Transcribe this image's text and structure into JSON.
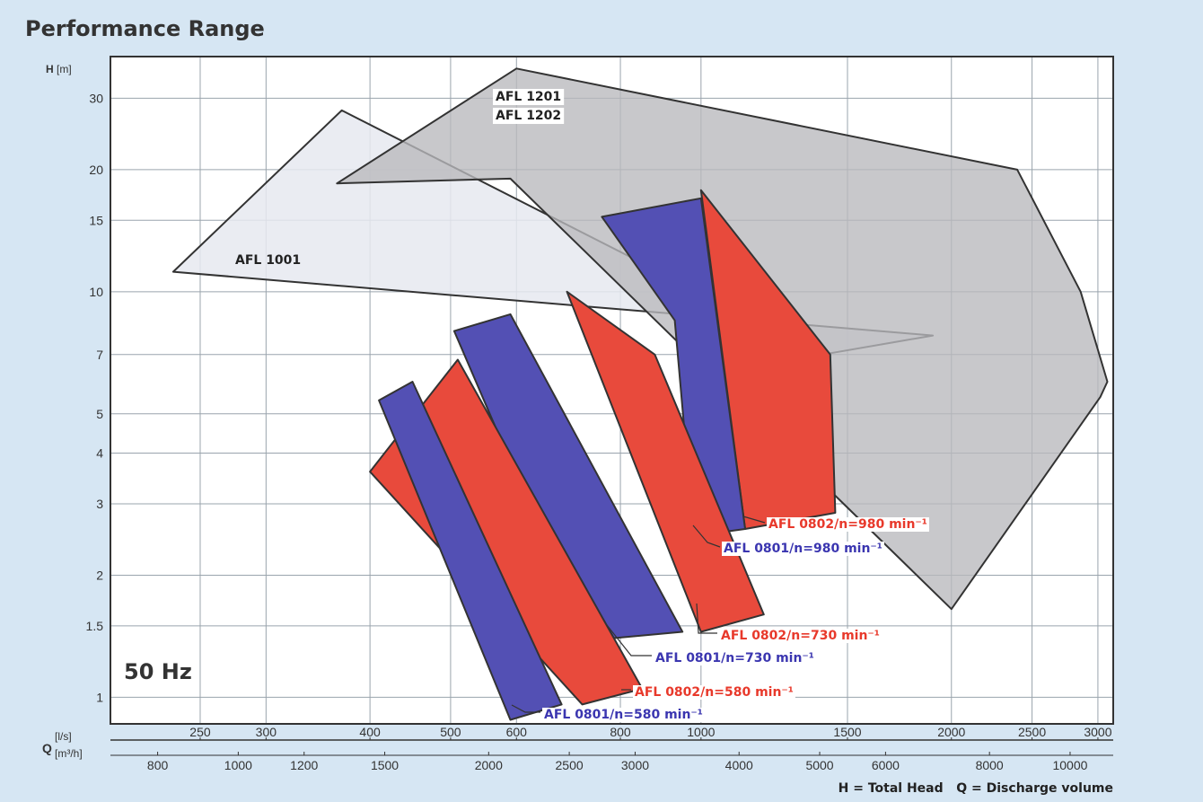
{
  "title": "Performance Range",
  "frequency_label": "50 Hz",
  "footer": "H = Total Head   Q = Discharge volume",
  "colors": {
    "background": "#d6e6f3",
    "plot": "#ffffff",
    "grid": "#9aa4ad",
    "red": "#e84a3c",
    "blue": "#5350b4",
    "grey": "#b9b9bd",
    "light": "#e6e9f0",
    "red_text": "#e8392b",
    "blue_text": "#3b36b0"
  },
  "chart_data": {
    "type": "area",
    "title": "Performance Range",
    "ylabel_parts": [
      "H",
      "[m]"
    ],
    "xlabel_parts": [
      "Q",
      "[l/s]",
      "[m³/h]"
    ],
    "x_scale": "log",
    "y_scale": "log",
    "xlim_ls": [
      195,
      3130
    ],
    "ylim_m": [
      0.86,
      38
    ],
    "y_ticks": [
      {
        "v": 1,
        "t": "1"
      },
      {
        "v": 1.5,
        "t": "1.5"
      },
      {
        "v": 2,
        "t": "2"
      },
      {
        "v": 3,
        "t": "3"
      },
      {
        "v": 4,
        "t": "4"
      },
      {
        "v": 5,
        "t": "5"
      },
      {
        "v": 7,
        "t": "7"
      },
      {
        "v": 10,
        "t": "10"
      },
      {
        "v": 15,
        "t": "15"
      },
      {
        "v": 20,
        "t": "20"
      },
      {
        "v": 30,
        "t": "30"
      }
    ],
    "x_ticks_ls": [
      {
        "v": 250,
        "t": "250"
      },
      {
        "v": 300,
        "t": "300"
      },
      {
        "v": 400,
        "t": "400"
      },
      {
        "v": 500,
        "t": "500"
      },
      {
        "v": 600,
        "t": "600"
      },
      {
        "v": 800,
        "t": "800"
      },
      {
        "v": 1000,
        "t": "1000"
      },
      {
        "v": 1500,
        "t": "1500"
      },
      {
        "v": 2000,
        "t": "2000"
      },
      {
        "v": 2500,
        "t": "2500"
      },
      {
        "v": 3000,
        "t": "3000"
      }
    ],
    "x_ticks_m3h": [
      {
        "v": 800,
        "t": "800"
      },
      {
        "v": 1000,
        "t": "1000"
      },
      {
        "v": 1200,
        "t": "1200"
      },
      {
        "v": 1500,
        "t": "1500"
      },
      {
        "v": 2000,
        "t": "2000"
      },
      {
        "v": 2500,
        "t": "2500"
      },
      {
        "v": 3000,
        "t": "3000"
      },
      {
        "v": 4000,
        "t": "4000"
      },
      {
        "v": 5000,
        "t": "5000"
      },
      {
        "v": 6000,
        "t": "6000"
      },
      {
        "v": 8000,
        "t": "8000"
      },
      {
        "v": 10000,
        "t": "10000"
      }
    ],
    "grid": true,
    "series": [
      {
        "name": "AFL 1001",
        "fill": "light",
        "x": [
          232,
          1900,
          1400,
          370
        ],
        "y": [
          11.2,
          7.8,
          7.0,
          28
        ]
      },
      {
        "name": "AFL 1201 / AFL 1202",
        "fill": "grey",
        "x": [
          365,
          600,
          2400,
          2860,
          3080,
          3020,
          2000,
          590
        ],
        "y": [
          18.5,
          35.5,
          20,
          10,
          6,
          5.5,
          1.65,
          19
        ]
      },
      {
        "name": "AFL 0802/n=980 min⁻¹",
        "fill": "red",
        "x": [
          1000,
          1430,
          1450,
          1130
        ],
        "y": [
          17.8,
          7.0,
          2.85,
          2.6
        ]
      },
      {
        "name": "AFL 0801/n=980 min⁻¹",
        "fill": "blue",
        "x": [
          760,
          1000,
          1130,
          980,
          930
        ],
        "y": [
          15.3,
          17.0,
          2.6,
          2.5,
          8.5
        ]
      },
      {
        "name": "AFL 0802/n=730 min⁻¹",
        "fill": "red",
        "x": [
          690,
          880,
          1190,
          1000
        ],
        "y": [
          10,
          7,
          1.6,
          1.45
        ]
      },
      {
        "name": "AFL 0801/n=730 min⁻¹",
        "fill": "blue",
        "x": [
          505,
          590,
          950,
          730
        ],
        "y": [
          8.0,
          8.8,
          1.45,
          1.38
        ]
      },
      {
        "name": "AFL 0802/n=580 min⁻¹",
        "fill": "red",
        "x": [
          400,
          510,
          850,
          720
        ],
        "y": [
          3.6,
          6.8,
          1.05,
          0.96
        ]
      },
      {
        "name": "AFL 0801/n=580 min⁻¹",
        "fill": "blue",
        "x": [
          410,
          450,
          680,
          590
        ],
        "y": [
          5.4,
          6.0,
          0.96,
          0.88
        ]
      }
    ],
    "region_labels": [
      {
        "text": "AFL 1001",
        "color": "dark"
      },
      {
        "text": "AFL 1201",
        "color": "dark"
      },
      {
        "text": "AFL 1202",
        "color": "dark"
      }
    ],
    "callouts": [
      {
        "text": "AFL 0802/n=980 min⁻¹",
        "color": "red_text"
      },
      {
        "text": "AFL 0801/n=980 min⁻¹",
        "color": "blue_text"
      },
      {
        "text": "AFL 0802/n=730 min⁻¹",
        "color": "red_text"
      },
      {
        "text": "AFL 0801/n=730 min⁻¹",
        "color": "blue_text"
      },
      {
        "text": "AFL 0802/n=580 min⁻¹",
        "color": "red_text"
      },
      {
        "text": "AFL 0801/n=580 min⁻¹",
        "color": "blue_text"
      }
    ]
  }
}
